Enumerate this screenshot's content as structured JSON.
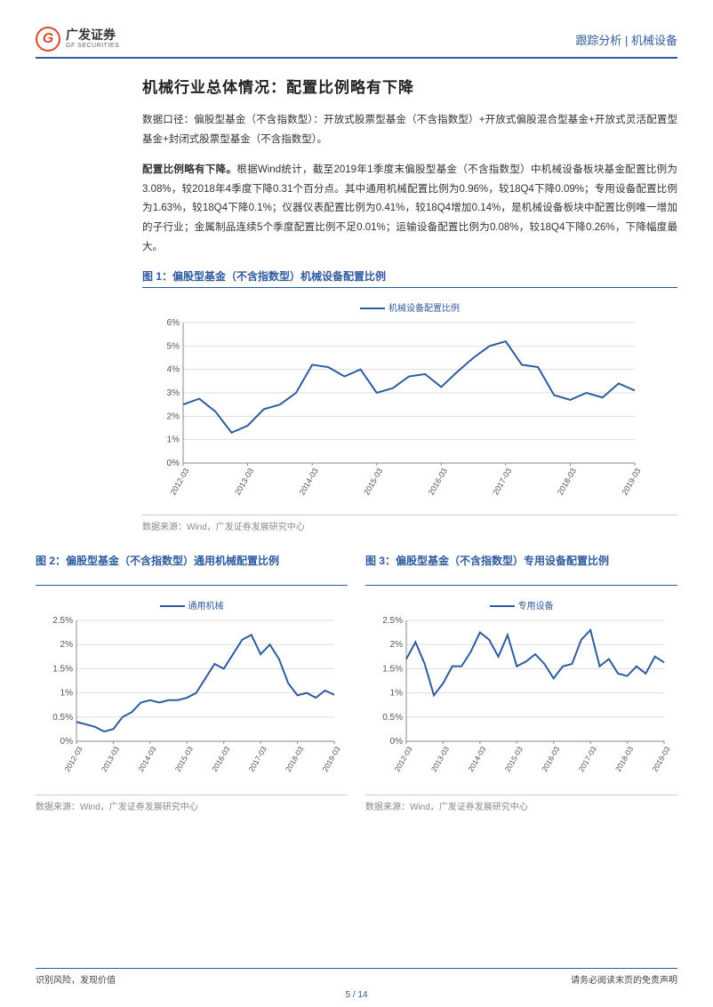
{
  "header": {
    "logo_cn": "广发证券",
    "logo_en": "GF SECURITIES",
    "doc_type": "跟踪分析 | 机械设备"
  },
  "title": "机械行业总体情况：配置比例略有下降",
  "para1": "数据口径：偏股型基金（不含指数型）：开放式股票型基金（不含指数型）+开放式偏股混合型基金+开放式灵活配置型基金+封闭式股票型基金（不含指数型）。",
  "para2_lead": "配置比例略有下降。",
  "para2_body": "根据Wind统计，截至2019年1季度末偏股型基金（不含指数型）中机械设备板块基金配置比例为3.08%，较2018年4季度下降0.31个百分点。其中通用机械配置比例为0.96%，较18Q4下降0.09%；专用设备配置比例为1.63%，较18Q4下降0.1%；仪器仪表配置比例为0.41%，较18Q4增加0.14%，是机械设备板块中配置比例唯一增加的子行业；金属制品连续5个季度配置比例不足0.01%；运输设备配置比例为0.08%，较18Q4下降0.26%，下降幅度最大。",
  "fig1": {
    "title": "图 1：偏股型基金（不含指数型）机械设备配置比例",
    "legend": "机械设备配置比例",
    "source": "数据来源：Wind，广发证券发展研究中心",
    "type": "line",
    "x_labels": [
      "2012-03",
      "2013-03",
      "2014-03",
      "2015-03",
      "2016-03",
      "2017-03",
      "2018-03",
      "2019-03"
    ],
    "y_ticks": [
      0,
      1,
      2,
      3,
      4,
      5,
      6
    ],
    "y_suffix": "%",
    "ylim": [
      0,
      6
    ],
    "series_color": "#2e5c9e",
    "grid_color": "#dddddd",
    "background_color": "#ffffff",
    "line_width": 2,
    "values": [
      2.5,
      2.75,
      2.2,
      1.3,
      1.6,
      2.3,
      2.5,
      3.0,
      4.2,
      4.1,
      3.7,
      4.0,
      3.0,
      3.2,
      3.7,
      3.8,
      3.25,
      3.9,
      4.5,
      5.0,
      5.2,
      4.2,
      4.1,
      2.9,
      2.7,
      3.0,
      2.8,
      3.4,
      3.1
    ]
  },
  "fig2": {
    "title": "图 2：偏股型基金（不含指数型）通用机械配置比例",
    "legend": "通用机械",
    "source": "数据来源：Wind，广发证券发展研究中心",
    "type": "line",
    "x_labels": [
      "2012-03",
      "2013-03",
      "2014-03",
      "2015-03",
      "2016-03",
      "2017-03",
      "2018-03",
      "2019-03"
    ],
    "y_ticks": [
      0,
      0.5,
      1.0,
      1.5,
      2.0,
      2.5
    ],
    "y_suffix": "%",
    "ylim": [
      0,
      2.5
    ],
    "series_color": "#2e5c9e",
    "grid_color": "#dddddd",
    "background_color": "#ffffff",
    "line_width": 2,
    "values": [
      0.4,
      0.35,
      0.3,
      0.2,
      0.25,
      0.5,
      0.6,
      0.8,
      0.85,
      0.8,
      0.85,
      0.85,
      0.9,
      1.0,
      1.3,
      1.6,
      1.5,
      1.8,
      2.1,
      2.2,
      1.8,
      2.0,
      1.7,
      1.2,
      0.95,
      1.0,
      0.9,
      1.05,
      0.96
    ]
  },
  "fig3": {
    "title": "图 3：偏股型基金（不含指数型）专用设备配置比例",
    "legend": "专用设备",
    "source": "数据来源：Wind，广发证券发展研究中心",
    "type": "line",
    "x_labels": [
      "2012-03",
      "2013-03",
      "2014-03",
      "2015-03",
      "2016-03",
      "2017-03",
      "2018-03",
      "2019-03"
    ],
    "y_ticks": [
      0,
      0.5,
      1.0,
      1.5,
      2.0,
      2.5
    ],
    "y_suffix": "%",
    "ylim": [
      0,
      2.5
    ],
    "series_color": "#2e5c9e",
    "grid_color": "#dddddd",
    "background_color": "#ffffff",
    "line_width": 2,
    "values": [
      1.7,
      2.05,
      1.6,
      0.95,
      1.2,
      1.55,
      1.55,
      1.85,
      2.25,
      2.1,
      1.75,
      2.2,
      1.55,
      1.65,
      1.8,
      1.6,
      1.3,
      1.55,
      1.6,
      2.1,
      2.3,
      1.55,
      1.7,
      1.4,
      1.35,
      1.55,
      1.4,
      1.75,
      1.63
    ]
  },
  "footer": {
    "left": "识别风险，发现价值",
    "right": "请务必阅读末页的免责声明",
    "page": "5 / 14"
  }
}
